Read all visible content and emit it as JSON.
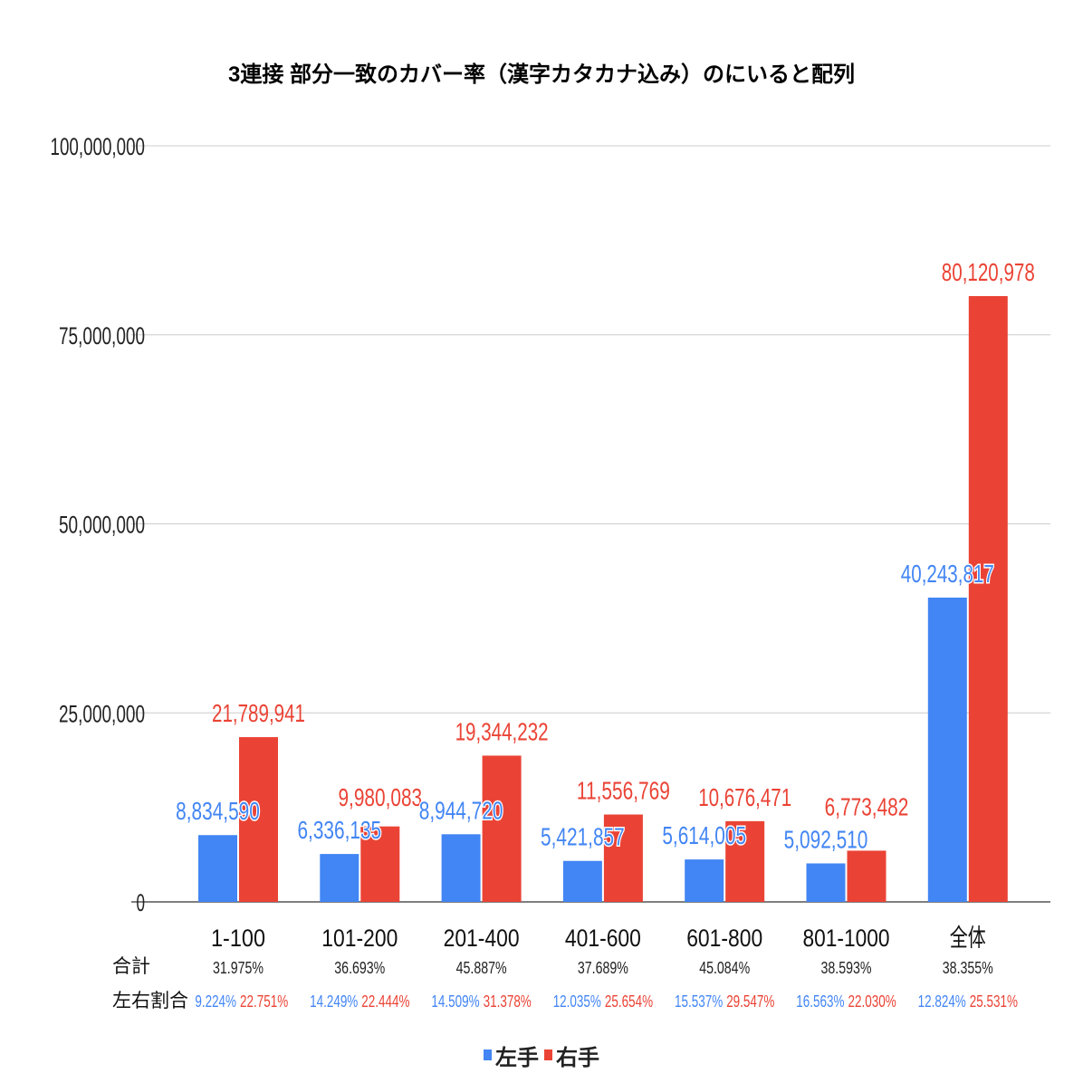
{
  "chart_data": {
    "type": "bar",
    "title": "3連接 部分一致のカバー率（漢字カタカナ込み）のにいると配列",
    "categories": [
      "1-100",
      "101-200",
      "201-400",
      "401-600",
      "601-800",
      "801-1000",
      "全体"
    ],
    "series": [
      {
        "name": "左手",
        "color": "#4285f4",
        "values": [
          8834590,
          6336135,
          8944720,
          5421857,
          5614005,
          5092510,
          40243817
        ],
        "labels": [
          "8,834,590",
          "6,336,135",
          "8,944,720",
          "5,421,857",
          "5,614,005",
          "5,092,510",
          "40,243,817"
        ]
      },
      {
        "name": "右手",
        "color": "#ea4335",
        "values": [
          21789941,
          9980083,
          19344232,
          11556769,
          10676471,
          6773482,
          80120978
        ],
        "labels": [
          "21,789,941",
          "9,980,083",
          "19,344,232",
          "11,556,769",
          "10,676,471",
          "6,773,482",
          "80,120,978"
        ]
      }
    ],
    "ylim": [
      0,
      100000000
    ],
    "yticks": [
      0,
      25000000,
      50000000,
      75000000,
      100000000
    ],
    "ytick_labels": [
      "0",
      "25,000,000",
      "50,000,000",
      "75,000,000",
      "100,000,000"
    ],
    "grid": true,
    "legend_position": "bottom",
    "xlabel": "",
    "ylabel": "",
    "annotations": {
      "total_row_label": "合計",
      "totals": [
        "31.975%",
        "36.693%",
        "45.887%",
        "37.689%",
        "45.084%",
        "38.593%",
        "38.355%"
      ],
      "ratio_row_label": "左右割合",
      "left_ratios": [
        "9.224%",
        "14.249%",
        "14.509%",
        "12.035%",
        "15.537%",
        "16.563%",
        "12.824%"
      ],
      "right_ratios": [
        "22.751%",
        "22.444%",
        "31.378%",
        "25.654%",
        "29.547%",
        "22.030%",
        "25.531%"
      ]
    }
  }
}
